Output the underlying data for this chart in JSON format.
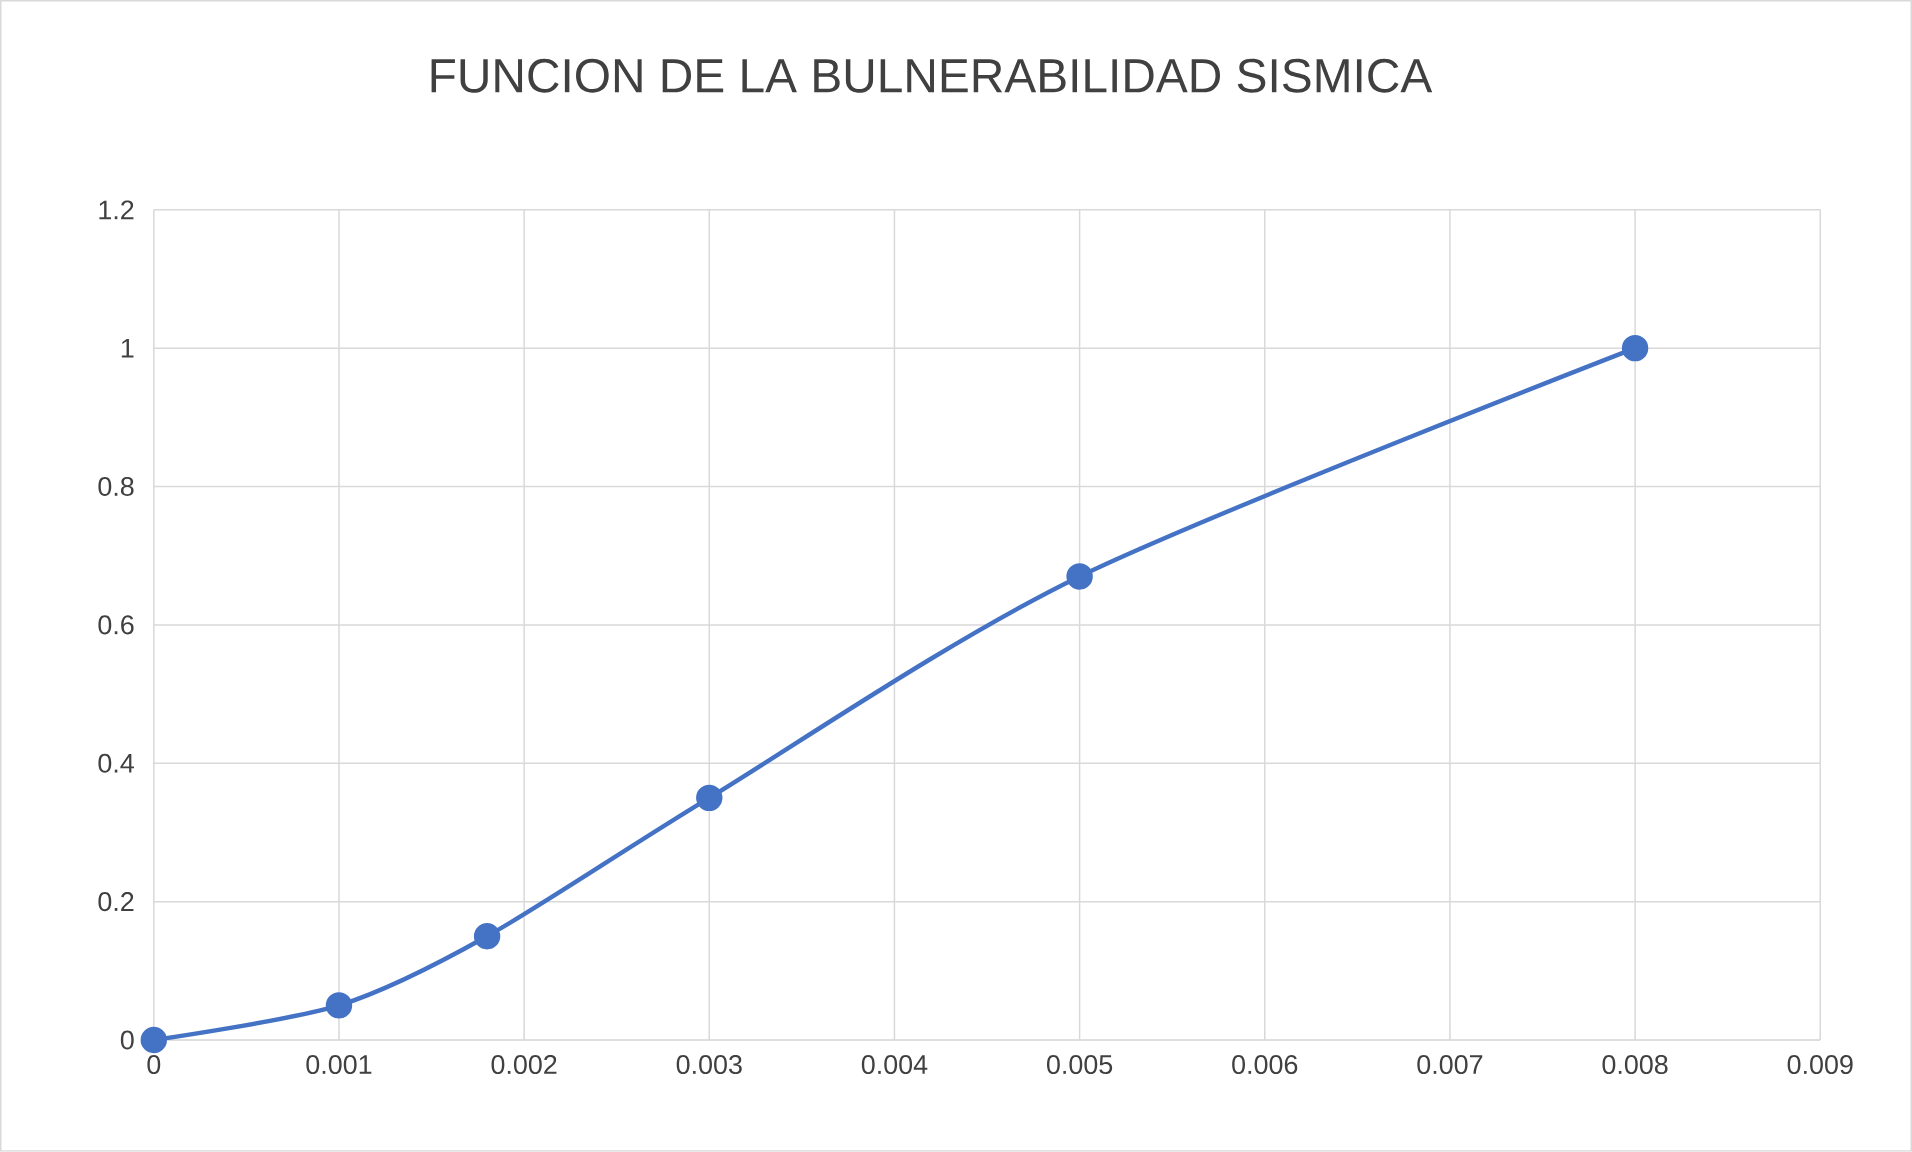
{
  "chart_data": {
    "type": "line",
    "title": "FUNCION DE LA BULNERABILIDAD SISMICA",
    "x": [
      0,
      0.001,
      0.0018,
      0.003,
      0.005,
      0.008
    ],
    "series": [
      {
        "color": "#4472c4",
        "values": [
          0,
          0.05,
          0.15,
          0.35,
          0.67,
          1
        ]
      }
    ],
    "xlim": [
      0,
      0.009
    ],
    "ylim": [
      0,
      1.2
    ],
    "xticks": [
      0,
      0.001,
      0.002,
      0.003,
      0.004,
      0.005,
      0.006,
      0.007,
      0.008,
      0.009
    ],
    "yticks": [
      0,
      0.2,
      0.4,
      0.6,
      0.8,
      1,
      1.2
    ],
    "grid": true,
    "marker": "circle",
    "line_style": "solid"
  }
}
